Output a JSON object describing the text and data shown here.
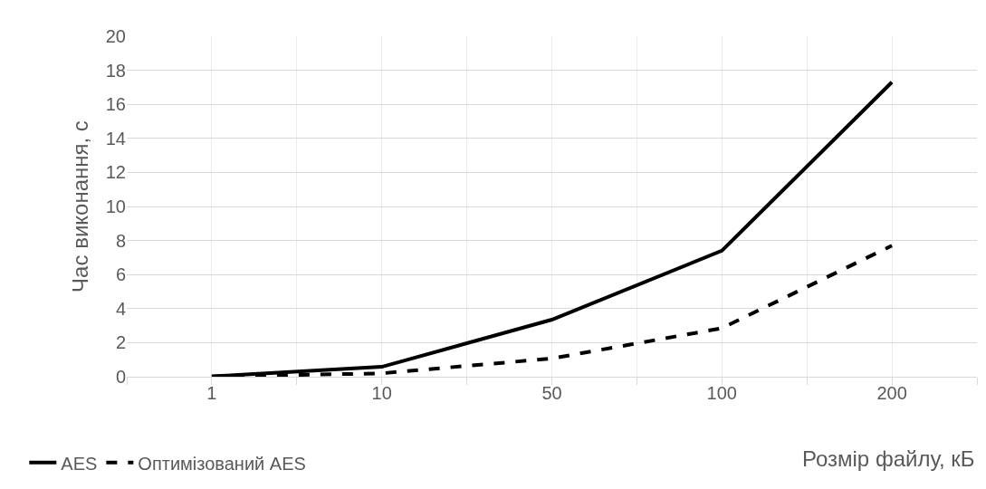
{
  "chart_data": {
    "type": "line",
    "xlabel": "Розмір файлу, кБ",
    "ylabel": "Час виконання, с",
    "categories": [
      "1",
      "10",
      "50",
      "100",
      "200"
    ],
    "series": [
      {
        "name": "AES",
        "color": "#000000",
        "line_style": "solid",
        "values": [
          0.02,
          0.58,
          3.35,
          7.4,
          17.3
        ]
      },
      {
        "name": "Оптимізований AES",
        "color": "#000000",
        "line_style": "dashed",
        "values": [
          0,
          0.2,
          1.07,
          2.85,
          7.7
        ]
      }
    ],
    "ylim": [
      0,
      20
    ],
    "yticks": [
      0,
      2,
      4,
      6,
      8,
      10,
      12,
      14,
      16,
      18,
      20
    ],
    "grid": true,
    "legend": "bottom left",
    "marker": "none"
  }
}
